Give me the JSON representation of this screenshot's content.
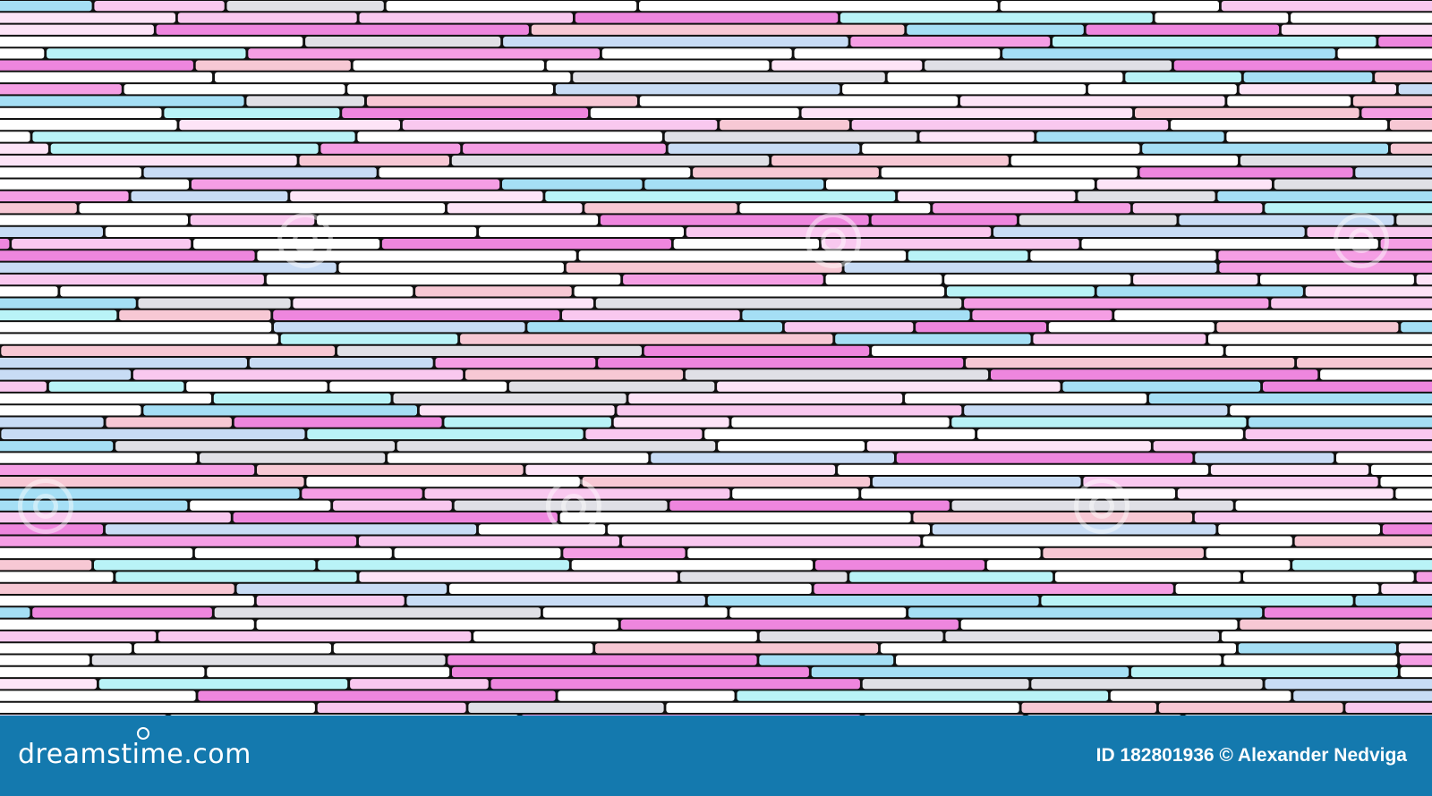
{
  "image": {
    "palette": [
      "#ffffff",
      "#ffffff",
      "#ffffff",
      "#ffffff",
      "#fde4f7",
      "#f9c8ef",
      "#f59ee4",
      "#ee86de",
      "#b9f3f7",
      "#a5dff5",
      "#c8dcf5",
      "#e0e0e6",
      "#f7c8d4"
    ]
  },
  "footer": {
    "brand": "dreamstime.com",
    "credit": "ID 182801936 © Alexander Nedviga",
    "background_color": "#1479ae"
  }
}
